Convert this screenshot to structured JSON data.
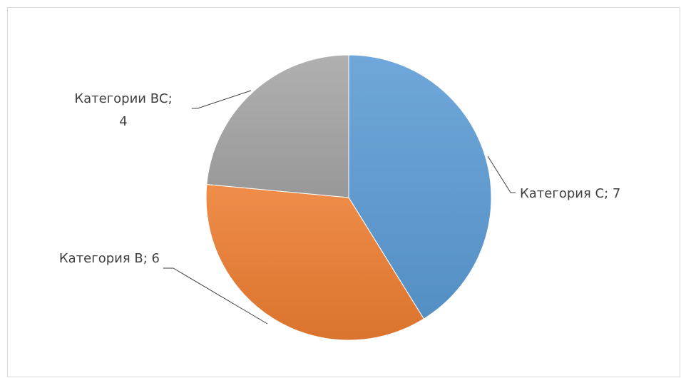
{
  "chart_data": {
    "type": "pie",
    "title": "",
    "categories": [
      "Категория С",
      "Категория В",
      "Категории ВС"
    ],
    "values": [
      7,
      6,
      4
    ],
    "colors": [
      "#5b9bd5",
      "#ed7d31",
      "#a5a5a5"
    ],
    "data_labels": [
      {
        "lines": [
          "Категория С; 7"
        ]
      },
      {
        "lines": [
          "Категория В; 6"
        ]
      },
      {
        "lines": [
          "Категории ВС;",
          "4"
        ]
      }
    ],
    "legend": "none",
    "start_angle": "top",
    "direction": "clockwise"
  }
}
